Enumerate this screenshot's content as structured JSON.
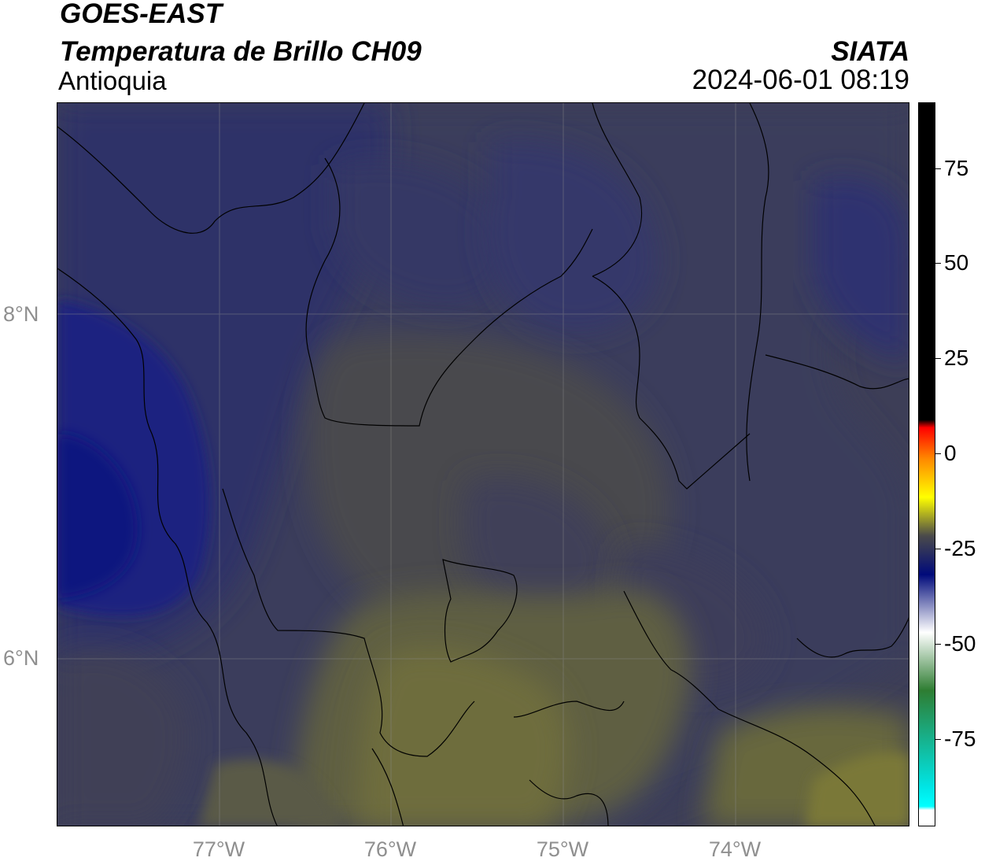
{
  "header": {
    "satellite": "GOES-EAST",
    "product": "Temperatura de Brillo CH09",
    "region": "Antioquia",
    "brand": "SIATA",
    "datetime": "2024-06-01 08:19"
  },
  "axes": {
    "lat_labels": [
      "8°N",
      "6°N"
    ],
    "lon_labels": [
      "77°W",
      "76°W",
      "75°W",
      "74°W"
    ]
  },
  "colorbar": {
    "ticks": [
      "75",
      "50",
      "25",
      "0",
      "-25",
      "-50",
      "-75"
    ],
    "range": [
      -95,
      92
    ],
    "stops": [
      {
        "value": 92,
        "color": "#000000"
      },
      {
        "value": 10,
        "color": "#000000"
      },
      {
        "value": 8,
        "color": "#ff0000"
      },
      {
        "value": 0,
        "color": "#ff8800"
      },
      {
        "value": -10,
        "color": "#ffff00"
      },
      {
        "value": -20,
        "color": "#4a4a4a"
      },
      {
        "value": -30,
        "color": "#000a7a"
      },
      {
        "value": -45,
        "color": "#ffffff"
      },
      {
        "value": -60,
        "color": "#2e7d32"
      },
      {
        "value": -85,
        "color": "#00e5e5"
      },
      {
        "value": -90,
        "color": "#00ffff"
      },
      {
        "value": -91,
        "color": "#ffffff"
      }
    ]
  },
  "map_colors": {
    "background": "#3e3e56",
    "cold_cloud": "#2a2e6a",
    "very_cold": "#0d1a80",
    "warm_land": "#4c4c4c",
    "warmest": "#7a7a3a",
    "grid": "#8a8a8a",
    "borders": "#000000"
  }
}
